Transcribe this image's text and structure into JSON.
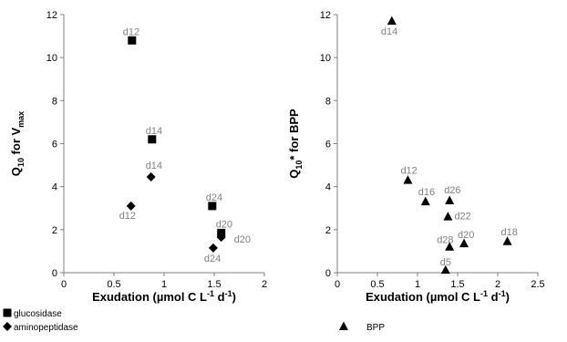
{
  "chart_data": [
    {
      "type": "scatter",
      "xlabel": "Exudation (µmol C  L⁻¹ d⁻¹)",
      "ylabel": "Q10 for Vmax",
      "ylabel_parts": {
        "main": "Q",
        "sub1": "10",
        "mid": " for V",
        "sub2": "max"
      },
      "xlabel_parts": {
        "main": "Exudation (µmol C  L",
        "sup1": "-1",
        "mid": " d",
        "sup2": "-1",
        "end": ")"
      },
      "xlim": [
        0,
        2
      ],
      "ylim": [
        0,
        12
      ],
      "xticks": [
        0,
        0.5,
        1,
        1.5,
        2
      ],
      "xtick_labels": [
        "0",
        "0.5",
        "1",
        "1.5",
        "2"
      ],
      "yticks": [
        0,
        2,
        4,
        6,
        8,
        10,
        12
      ],
      "ytick_labels": [
        "0",
        "2",
        "4",
        "6",
        "8",
        "10",
        "12"
      ],
      "legend_position": "bottom-left",
      "series": [
        {
          "name": "glucosidase",
          "marker": "square",
          "color": "#000000",
          "points": [
            {
              "x": 0.68,
              "y": 10.8,
              "label": "d12"
            },
            {
              "x": 0.88,
              "y": 6.2,
              "label": "d14"
            },
            {
              "x": 1.48,
              "y": 3.1,
              "label": "d24"
            },
            {
              "x": 1.57,
              "y": 1.85,
              "label": "d20"
            }
          ]
        },
        {
          "name": "aminopeptidase",
          "marker": "diamond",
          "color": "#000000",
          "points": [
            {
              "x": 0.67,
              "y": 3.1,
              "label": "d12"
            },
            {
              "x": 0.87,
              "y": 4.45,
              "label": "d14"
            },
            {
              "x": 1.49,
              "y": 1.15,
              "label": "d24"
            },
            {
              "x": 1.57,
              "y": 1.65,
              "label": "d20"
            }
          ]
        }
      ]
    },
    {
      "type": "scatter",
      "xlabel": "Exudation (µmol C  L⁻¹ d⁻¹)",
      "ylabel": "Q10* for BPP",
      "ylabel_parts": {
        "main": "Q",
        "sub1": "10",
        "mid": "* for BPP"
      },
      "xlabel_parts": {
        "main": "Exudation (µmol C  L",
        "sup1": "-1",
        "mid": " d",
        "sup2": "-1",
        "end": ")"
      },
      "xlim": [
        0,
        2.5
      ],
      "ylim": [
        0,
        12
      ],
      "xticks": [
        0,
        0.5,
        1,
        1.5,
        2,
        2.5
      ],
      "xtick_labels": [
        "0",
        "0.5",
        "1",
        "1.5",
        "2",
        "2.5"
      ],
      "yticks": [
        0,
        2,
        4,
        6,
        8,
        10,
        12
      ],
      "ytick_labels": [
        "0",
        "2",
        "4",
        "6",
        "8",
        "10",
        "12"
      ],
      "legend_position": "bottom-left",
      "series": [
        {
          "name": "BPP",
          "marker": "triangle",
          "color": "#000000",
          "points": [
            {
              "x": 0.68,
              "y": 11.7,
              "label": "d14"
            },
            {
              "x": 0.88,
              "y": 4.3,
              "label": "d12"
            },
            {
              "x": 1.1,
              "y": 3.3,
              "label": "d16"
            },
            {
              "x": 1.4,
              "y": 3.35,
              "label": "d26"
            },
            {
              "x": 1.38,
              "y": 2.6,
              "label": "d22"
            },
            {
              "x": 1.4,
              "y": 1.2,
              "label": "d28"
            },
            {
              "x": 1.58,
              "y": 1.35,
              "label": "d20"
            },
            {
              "x": 2.12,
              "y": 1.45,
              "label": "d18"
            },
            {
              "x": 1.35,
              "y": 0.12,
              "label": "d5"
            }
          ]
        }
      ]
    }
  ]
}
